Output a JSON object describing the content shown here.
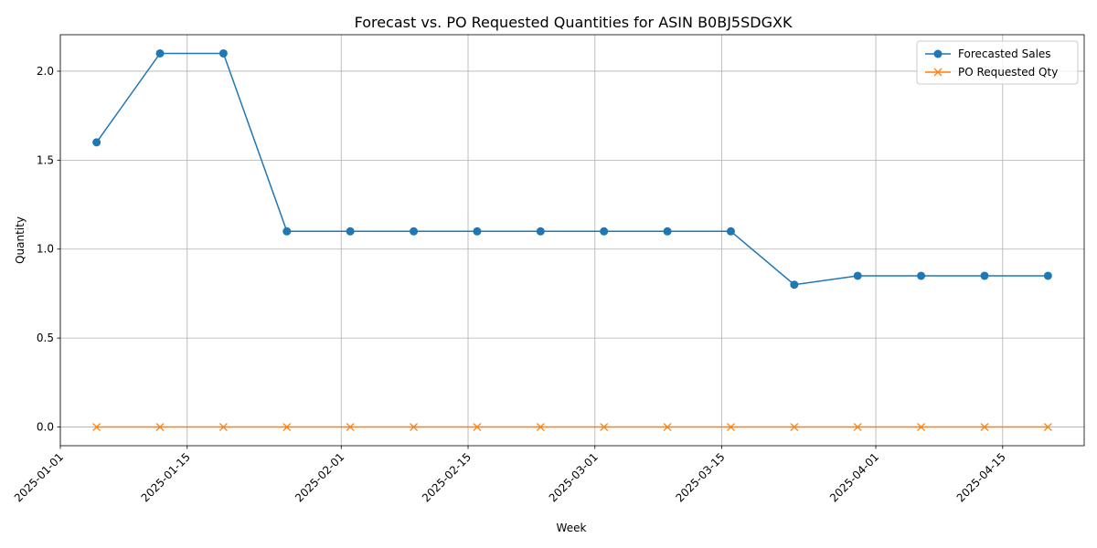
{
  "chart_data": {
    "type": "line",
    "title": "Forecast vs. PO Requested Quantities for ASIN B0BJ5SDGXK",
    "xlabel": "Week",
    "ylabel": "Quantity",
    "x": [
      "2025-01-05",
      "2025-01-12",
      "2025-01-19",
      "2025-01-26",
      "2025-02-02",
      "2025-02-09",
      "2025-02-16",
      "2025-02-23",
      "2025-03-02",
      "2025-03-09",
      "2025-03-16",
      "2025-03-23",
      "2025-03-30",
      "2025-04-06",
      "2025-04-13",
      "2025-04-20"
    ],
    "series": [
      {
        "name": "Forecasted Sales",
        "marker": "circle",
        "color": "#1f77b4",
        "values": [
          1.6,
          2.1,
          2.1,
          1.1,
          1.1,
          1.1,
          1.1,
          1.1,
          1.1,
          1.1,
          1.1,
          0.8,
          0.85,
          0.85,
          0.85,
          0.85
        ]
      },
      {
        "name": "PO Requested Qty",
        "marker": "x",
        "color": "#ff7f0e",
        "values": [
          0,
          0,
          0,
          0,
          0,
          0,
          0,
          0,
          0,
          0,
          0,
          0,
          0,
          0,
          0,
          0
        ]
      }
    ],
    "xlim": [
      "2025-01-01",
      "2025-04-24"
    ],
    "ylim": [
      -0.105,
      2.205
    ],
    "x_ticks": [
      "2025-01-01",
      "2025-01-15",
      "2025-02-01",
      "2025-02-15",
      "2025-03-01",
      "2025-03-15",
      "2025-04-01",
      "2025-04-15"
    ],
    "y_ticks": [
      "0.0",
      "0.5",
      "1.0",
      "1.5",
      "2.0"
    ],
    "grid": true,
    "legend_position": "top-right"
  }
}
